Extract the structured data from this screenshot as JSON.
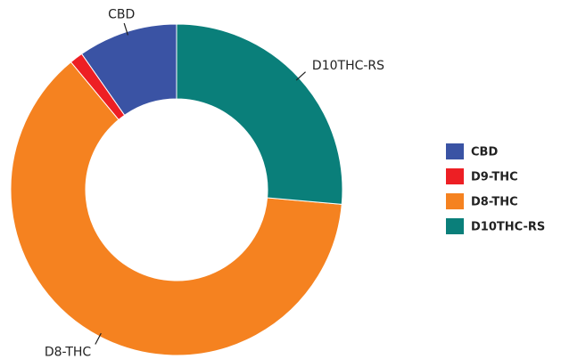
{
  "chart_data": {
    "type": "donut",
    "categories": [
      "CBD",
      "D9-THC",
      "D8-THC",
      "D10THC-RS"
    ],
    "values": [
      9.7,
      1.3,
      62.6,
      26.4
    ],
    "colors": [
      "#3a53a4",
      "#ed1f24",
      "#f58220",
      "#0a7f7a"
    ],
    "outside_labels": [
      "CBD",
      "D8-THC",
      "D10THC-RS"
    ],
    "legend": "right"
  }
}
